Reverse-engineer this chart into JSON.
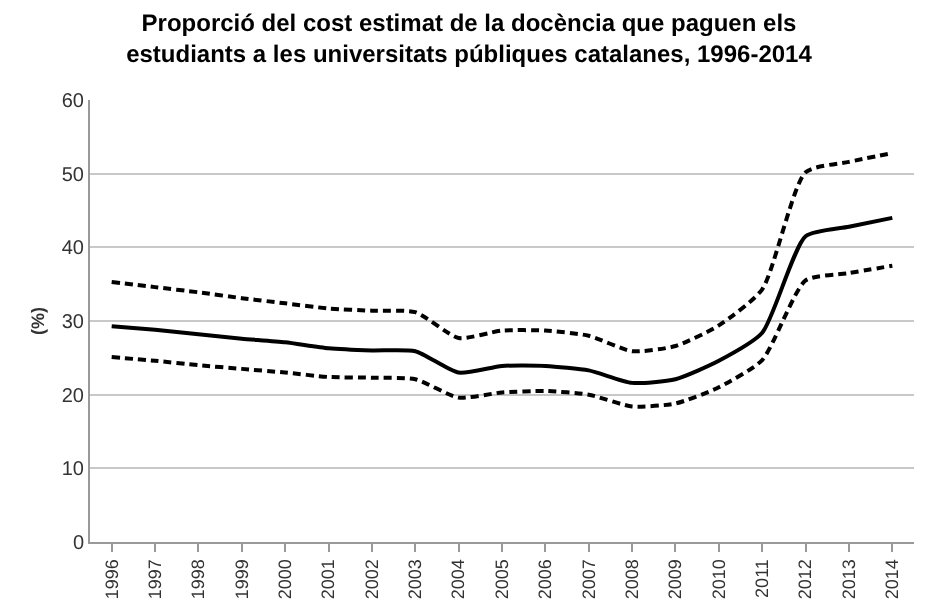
{
  "chart_data": {
    "type": "line",
    "title": "Proporció del cost estimat de la docència que paguen els\nestudiants a les universitats públiques catalanes, 1996-2014",
    "ylabel": "(%)",
    "categories": [
      "1996",
      "1997",
      "1998",
      "1999",
      "2000",
      "2001",
      "2002",
      "2003",
      "2004",
      "2005",
      "2006",
      "2007",
      "2008",
      "2009",
      "2010",
      "2011",
      "2012",
      "2013",
      "2014"
    ],
    "series": [
      {
        "color": "#000000",
        "line_style": "solid",
        "values": [
          29.3,
          28.8,
          28.2,
          27.6,
          27.1,
          26.3,
          26.0,
          25.9,
          23.0,
          23.9,
          23.9,
          23.3,
          21.6,
          22.1,
          24.6,
          28.4,
          41.5,
          42.8,
          44.0
        ]
      },
      {
        "color": "#000000",
        "line_style": "dashed",
        "values": [
          35.3,
          34.6,
          33.9,
          33.1,
          32.4,
          31.7,
          31.4,
          31.2,
          27.7,
          28.7,
          28.7,
          28.0,
          25.9,
          26.6,
          29.4,
          34.3,
          50.2,
          51.6,
          52.8
        ]
      },
      {
        "color": "#000000",
        "line_style": "dashed",
        "values": [
          25.1,
          24.6,
          24.0,
          23.5,
          23.0,
          22.4,
          22.3,
          22.1,
          19.6,
          20.3,
          20.5,
          20.0,
          18.4,
          18.8,
          21.0,
          24.7,
          35.5,
          36.5,
          37.5
        ]
      }
    ],
    "ylim": [
      0,
      60
    ],
    "yticks": [
      0,
      10,
      20,
      30,
      40,
      50,
      60
    ],
    "grid": "y",
    "marker": "none"
  }
}
